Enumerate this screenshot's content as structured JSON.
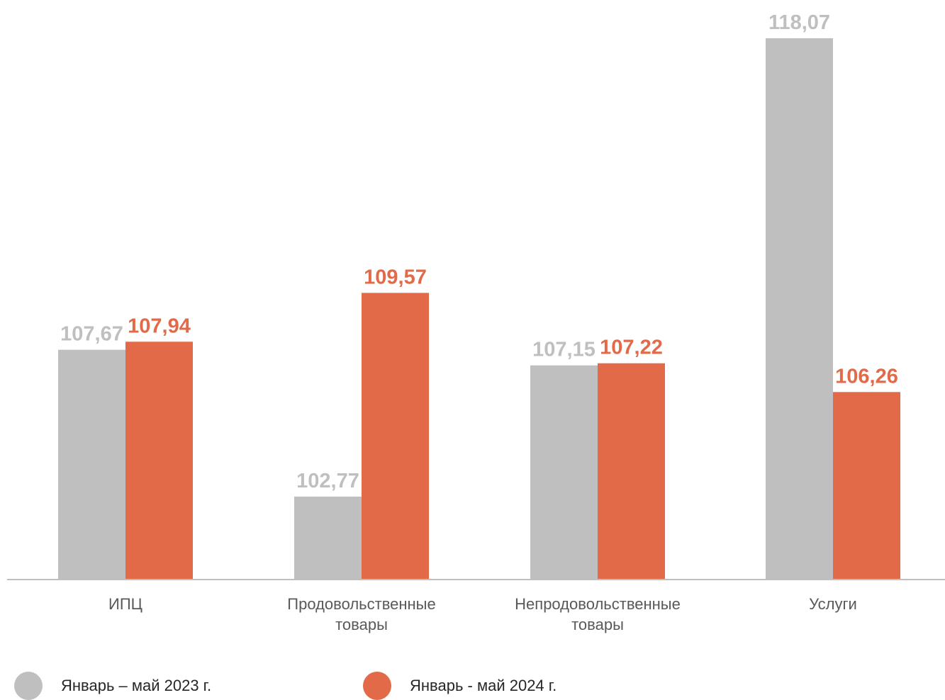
{
  "chart_data": {
    "type": "bar",
    "categories": [
      [
        "ИПЦ"
      ],
      [
        "Продовольственные",
        "товары"
      ],
      [
        "Непродовольственные",
        "товары"
      ],
      [
        "Услуги"
      ]
    ],
    "series": [
      {
        "name": "Январь – май 2023 г.",
        "color": "#bfbfbf",
        "values": [
          107.67,
          102.77,
          107.15,
          118.07
        ],
        "labels": [
          "107,67",
          "102,77",
          "107,15",
          "118,07"
        ]
      },
      {
        "name": "Январь - май 2024 г.",
        "color": "#e26a48",
        "values": [
          107.94,
          109.57,
          107.22,
          106.26
        ],
        "labels": [
          "107,94",
          "109,57",
          "107,22",
          "106,26"
        ]
      }
    ],
    "ylim": [
      100,
      118.07
    ],
    "grid": false,
    "legend_position": "bottom-left"
  },
  "legend": [
    {
      "label": "Январь – май 2023 г.",
      "color": "#bfbfbf"
    },
    {
      "label": "Январь - май 2024 г.",
      "color": "#e26a48"
    }
  ]
}
